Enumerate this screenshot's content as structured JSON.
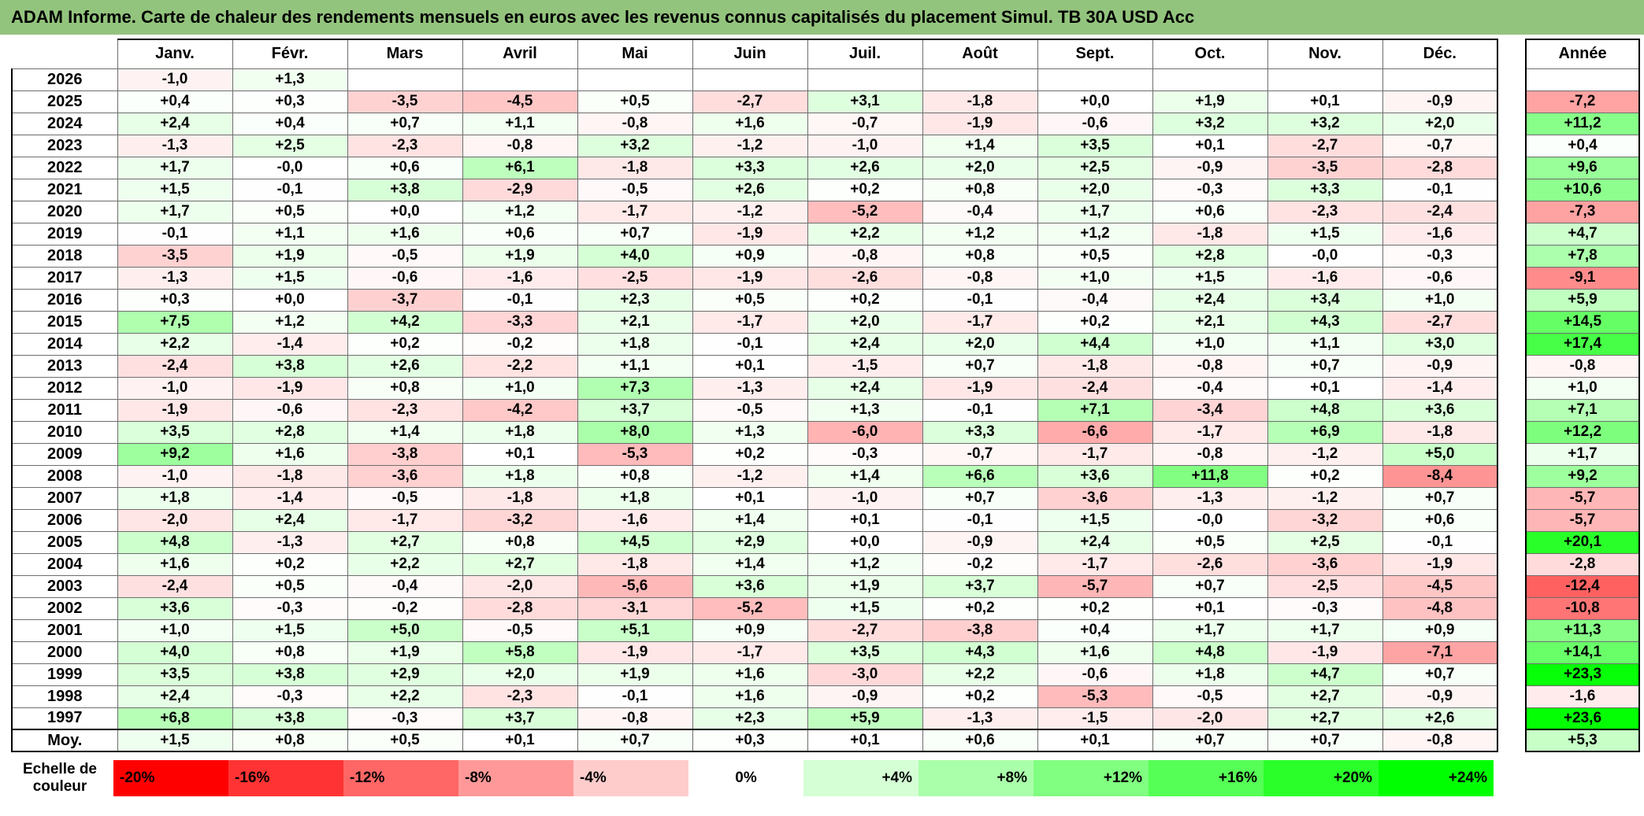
{
  "title": "ADAM Informe. Carte de chaleur des rendements mensuels en euros avec les revenus connus capitalisés du placement Simul. TB 30A USD Acc",
  "annee_header": "Année",
  "scale_label": {
    "line1": "Echelle de",
    "line2": "couleur"
  },
  "title_bar_color": "#93c47d",
  "chart_data": {
    "type": "heatmap",
    "title": "ADAM Informe. Carte de chaleur des rendements mensuels en euros avec les revenus connus capitalisés du placement Simul. TB 30A USD Acc",
    "columns": [
      "Janv.",
      "Févr.",
      "Mars",
      "Avril",
      "Mai",
      "Juin",
      "Juil.",
      "Août",
      "Sept.",
      "Oct.",
      "Nov.",
      "Déc."
    ],
    "annual_header": "Année",
    "rows": [
      {
        "year": "2026",
        "values": [
          "-1,0",
          "+1,3",
          "",
          "",
          "",
          "",
          "",
          "",
          "",
          "",
          "",
          ""
        ],
        "annual": ""
      },
      {
        "year": "2025",
        "values": [
          "+0,4",
          "+0,3",
          "-3,5",
          "-4,5",
          "+0,5",
          "-2,7",
          "+3,1",
          "-1,8",
          "+0,0",
          "+1,9",
          "+0,1",
          "-0,9"
        ],
        "annual": "-7,2"
      },
      {
        "year": "2024",
        "values": [
          "+2,4",
          "+0,4",
          "+0,7",
          "+1,1",
          "-0,8",
          "+1,6",
          "-0,7",
          "-1,9",
          "-0,6",
          "+3,2",
          "+3,2",
          "+2,0"
        ],
        "annual": "+11,2"
      },
      {
        "year": "2023",
        "values": [
          "-1,3",
          "+2,5",
          "-2,3",
          "-0,8",
          "+3,2",
          "-1,2",
          "-1,0",
          "+1,4",
          "+3,5",
          "+0,1",
          "-2,7",
          "-0,7"
        ],
        "annual": "+0,4"
      },
      {
        "year": "2022",
        "values": [
          "+1,7",
          "-0,0",
          "+0,6",
          "+6,1",
          "-1,8",
          "+3,3",
          "+2,6",
          "+2,0",
          "+2,5",
          "-0,9",
          "-3,5",
          "-2,8"
        ],
        "annual": "+9,6"
      },
      {
        "year": "2021",
        "values": [
          "+1,5",
          "-0,1",
          "+3,8",
          "-2,9",
          "-0,5",
          "+2,6",
          "+0,2",
          "+0,8",
          "+2,0",
          "-0,3",
          "+3,3",
          "-0,1"
        ],
        "annual": "+10,6"
      },
      {
        "year": "2020",
        "values": [
          "+1,7",
          "+0,5",
          "+0,0",
          "+1,2",
          "-1,7",
          "-1,2",
          "-5,2",
          "-0,4",
          "+1,7",
          "+0,6",
          "-2,3",
          "-2,4"
        ],
        "annual": "-7,3"
      },
      {
        "year": "2019",
        "values": [
          "-0,1",
          "+1,1",
          "+1,6",
          "+0,6",
          "+0,7",
          "-1,9",
          "+2,2",
          "+1,2",
          "+1,2",
          "-1,8",
          "+1,5",
          "-1,6"
        ],
        "annual": "+4,7"
      },
      {
        "year": "2018",
        "values": [
          "-3,5",
          "+1,9",
          "-0,5",
          "+1,9",
          "+4,0",
          "+0,9",
          "-0,8",
          "+0,8",
          "+0,5",
          "+2,8",
          "-0,0",
          "-0,3"
        ],
        "annual": "+7,8"
      },
      {
        "year": "2017",
        "values": [
          "-1,3",
          "+1,5",
          "-0,6",
          "-1,6",
          "-2,5",
          "-1,9",
          "-2,6",
          "-0,8",
          "+1,0",
          "+1,5",
          "-1,6",
          "-0,6"
        ],
        "annual": "-9,1"
      },
      {
        "year": "2016",
        "values": [
          "+0,3",
          "+0,0",
          "-3,7",
          "-0,1",
          "+2,3",
          "+0,5",
          "+0,2",
          "-0,1",
          "-0,4",
          "+2,4",
          "+3,4",
          "+1,0"
        ],
        "annual": "+5,9"
      },
      {
        "year": "2015",
        "values": [
          "+7,5",
          "+1,2",
          "+4,2",
          "-3,3",
          "+2,1",
          "-1,7",
          "+2,0",
          "-1,7",
          "+0,2",
          "+2,1",
          "+4,3",
          "-2,7"
        ],
        "annual": "+14,5"
      },
      {
        "year": "2014",
        "values": [
          "+2,2",
          "-1,4",
          "+0,2",
          "-0,2",
          "+1,8",
          "-0,1",
          "+2,4",
          "+2,0",
          "+4,4",
          "+1,0",
          "+1,1",
          "+3,0"
        ],
        "annual": "+17,4"
      },
      {
        "year": "2013",
        "values": [
          "-2,4",
          "+3,8",
          "+2,6",
          "-2,2",
          "+1,1",
          "+0,1",
          "-1,5",
          "+0,7",
          "-1,8",
          "-0,8",
          "+0,7",
          "-0,9"
        ],
        "annual": "-0,8"
      },
      {
        "year": "2012",
        "values": [
          "-1,0",
          "-1,9",
          "+0,8",
          "+1,0",
          "+7,3",
          "-1,3",
          "+2,4",
          "-1,9",
          "-2,4",
          "-0,4",
          "+0,1",
          "-1,4"
        ],
        "annual": "+1,0"
      },
      {
        "year": "2011",
        "values": [
          "-1,9",
          "-0,6",
          "-2,3",
          "-4,2",
          "+3,7",
          "-0,5",
          "+1,3",
          "-0,1",
          "+7,1",
          "-3,4",
          "+4,8",
          "+3,6"
        ],
        "annual": "+7,1"
      },
      {
        "year": "2010",
        "values": [
          "+3,5",
          "+2,8",
          "+1,4",
          "+1,8",
          "+8,0",
          "+1,3",
          "-6,0",
          "+3,3",
          "-6,6",
          "-1,7",
          "+6,9",
          "-1,8"
        ],
        "annual": "+12,2"
      },
      {
        "year": "2009",
        "values": [
          "+9,2",
          "+1,6",
          "-3,8",
          "+0,1",
          "-5,3",
          "+0,2",
          "-0,3",
          "-0,7",
          "-1,7",
          "-0,8",
          "-1,2",
          "+5,0"
        ],
        "annual": "+1,7"
      },
      {
        "year": "2008",
        "values": [
          "-1,0",
          "-1,8",
          "-3,6",
          "+1,8",
          "+0,8",
          "-1,2",
          "+1,4",
          "+6,6",
          "+3,6",
          "+11,8",
          "+0,2",
          "-8,4"
        ],
        "annual": "+9,2"
      },
      {
        "year": "2007",
        "values": [
          "+1,8",
          "-1,4",
          "-0,5",
          "-1,8",
          "+1,8",
          "+0,1",
          "-1,0",
          "+0,7",
          "-3,6",
          "-1,3",
          "-1,2",
          "+0,7"
        ],
        "annual": "-5,7"
      },
      {
        "year": "2006",
        "values": [
          "-2,0",
          "+2,4",
          "-1,7",
          "-3,2",
          "-1,6",
          "+1,4",
          "+0,1",
          "-0,1",
          "+1,5",
          "-0,0",
          "-3,2",
          "+0,6"
        ],
        "annual": "-5,7"
      },
      {
        "year": "2005",
        "values": [
          "+4,8",
          "-1,3",
          "+2,7",
          "+0,8",
          "+4,5",
          "+2,9",
          "+0,0",
          "-0,9",
          "+2,4",
          "+0,5",
          "+2,5",
          "-0,1"
        ],
        "annual": "+20,1"
      },
      {
        "year": "2004",
        "values": [
          "+1,6",
          "+0,2",
          "+2,2",
          "+2,7",
          "-1,8",
          "+1,4",
          "+1,2",
          "-0,2",
          "-1,7",
          "-2,6",
          "-3,6",
          "-1,9"
        ],
        "annual": "-2,8"
      },
      {
        "year": "2003",
        "values": [
          "-2,4",
          "+0,5",
          "-0,4",
          "-2,0",
          "-5,6",
          "+3,6",
          "+1,9",
          "+3,7",
          "-5,7",
          "+0,7",
          "-2,5",
          "-4,5"
        ],
        "annual": "-12,4"
      },
      {
        "year": "2002",
        "values": [
          "+3,6",
          "-0,3",
          "-0,2",
          "-2,8",
          "-3,1",
          "-5,2",
          "+1,5",
          "+0,2",
          "+0,2",
          "+0,1",
          "-0,3",
          "-4,8"
        ],
        "annual": "-10,8"
      },
      {
        "year": "2001",
        "values": [
          "+1,0",
          "+1,5",
          "+5,0",
          "-0,5",
          "+5,1",
          "+0,9",
          "-2,7",
          "-3,8",
          "+0,4",
          "+1,7",
          "+1,7",
          "+0,9"
        ],
        "annual": "+11,3"
      },
      {
        "year": "2000",
        "values": [
          "+4,0",
          "+0,8",
          "+1,9",
          "+5,8",
          "-1,9",
          "-1,7",
          "+3,5",
          "+4,3",
          "+1,6",
          "+4,8",
          "-1,9",
          "-7,1"
        ],
        "annual": "+14,1"
      },
      {
        "year": "1999",
        "values": [
          "+3,5",
          "+3,8",
          "+2,9",
          "+2,0",
          "+1,9",
          "+1,6",
          "-3,0",
          "+2,2",
          "-0,6",
          "+1,8",
          "+4,7",
          "+0,7"
        ],
        "annual": "+23,3"
      },
      {
        "year": "1998",
        "values": [
          "+2,4",
          "-0,3",
          "+2,2",
          "-2,3",
          "-0,1",
          "+1,6",
          "-0,9",
          "+0,2",
          "-5,3",
          "-0,5",
          "+2,7",
          "-0,9"
        ],
        "annual": "-1,6"
      },
      {
        "year": "1997",
        "values": [
          "+6,8",
          "+3,8",
          "-0,3",
          "+3,7",
          "-0,8",
          "+2,3",
          "+5,9",
          "-1,3",
          "-1,5",
          "-2,0",
          "+2,7",
          "+2,6"
        ],
        "annual": "+23,6"
      }
    ],
    "average": {
      "label": "Moy.",
      "values": [
        "+1,5",
        "+0,8",
        "+0,5",
        "+0,1",
        "+0,7",
        "+0,3",
        "+0,1",
        "+0,6",
        "+0,1",
        "+0,7",
        "+0,7",
        "-0,8"
      ],
      "annual": "+5,3"
    },
    "color_scale": {
      "min_value": -20,
      "max_value": 24,
      "min_color": "#ff0000",
      "mid_color": "#ffffff",
      "max_color": "#00ff00",
      "ticks": [
        "-20%",
        "-16%",
        "-12%",
        "-8%",
        "-4%",
        "0%",
        "+4%",
        "+8%",
        "+12%",
        "+16%",
        "+20%",
        "+24%"
      ]
    }
  }
}
